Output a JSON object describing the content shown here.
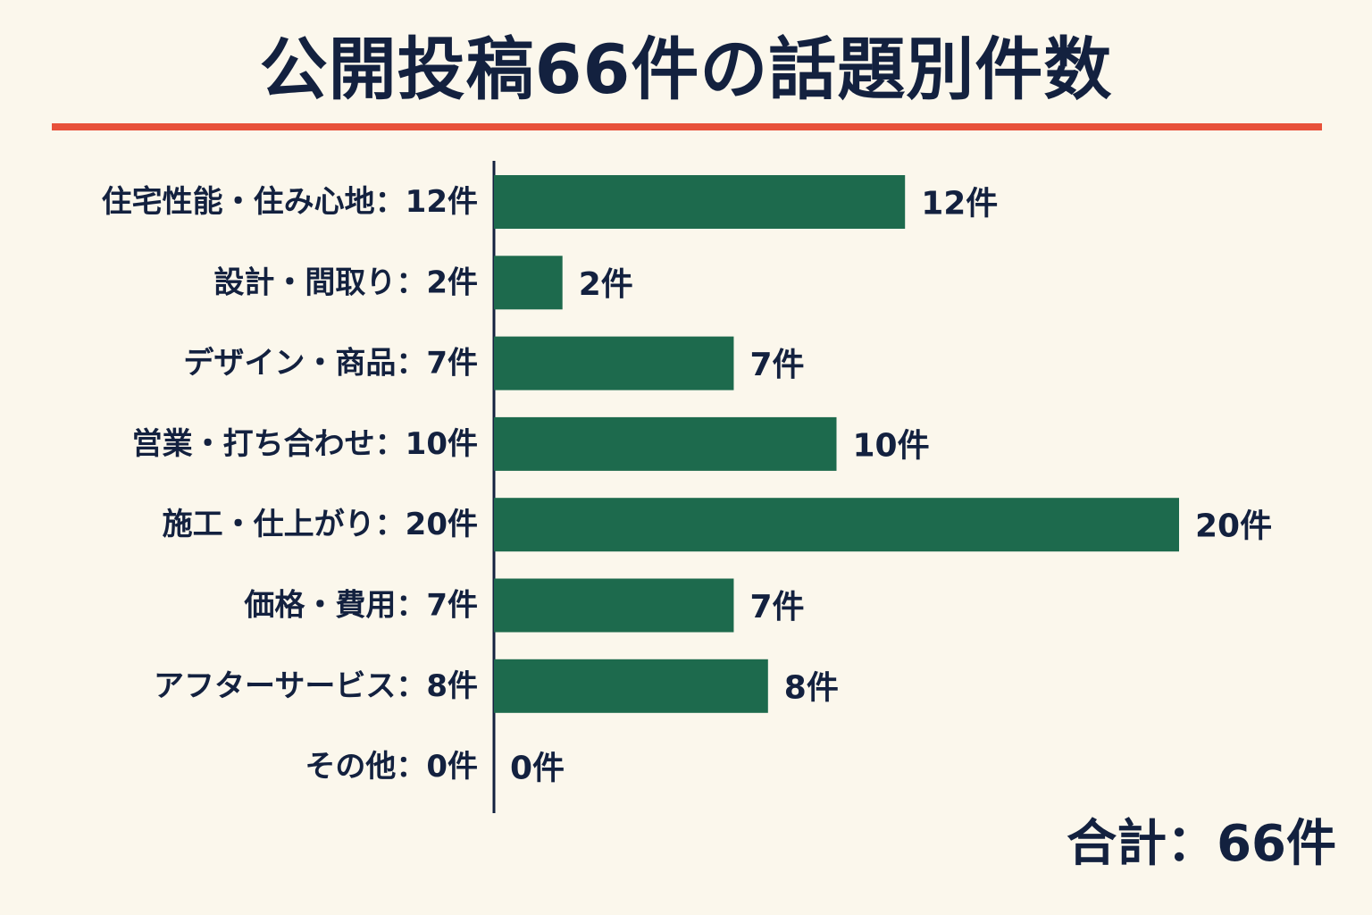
{
  "title": "公開投稿66件の話題別件数",
  "total_label": "合計：66件",
  "colors": {
    "background": "#fbf7ec",
    "bar": "#1d6a4d",
    "rule": "#e8513a",
    "text": "#13213f"
  },
  "chart_data": {
    "type": "bar",
    "orientation": "horizontal",
    "title": "公開投稿66件の話題別件数",
    "categories": [
      "住宅性能・住み心地：12件",
      "設計・間取り：2件",
      "デザイン・商品：7件",
      "営業・打ち合わせ：10件",
      "施工・仕上がり：20件",
      "価格・費用：7件",
      "アフターサービス：8件",
      "その他：0件"
    ],
    "values": [
      12,
      2,
      7,
      10,
      20,
      7,
      8,
      0
    ],
    "value_labels": [
      "12件",
      "2件",
      "7件",
      "10件",
      "20件",
      "7件",
      "8件",
      "0件"
    ],
    "xlim": [
      0,
      20
    ],
    "grid": false,
    "legend": "none"
  }
}
